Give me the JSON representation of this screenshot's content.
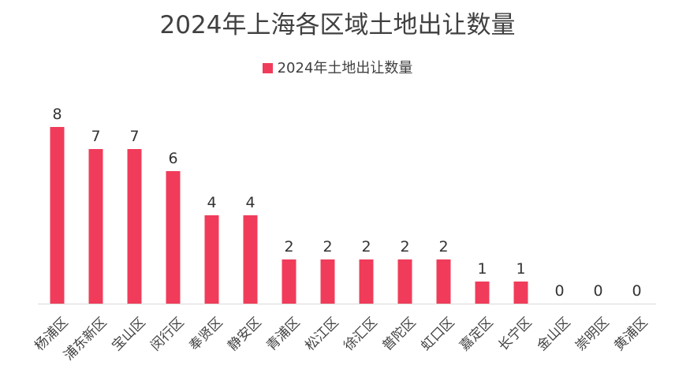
{
  "chart_data": {
    "type": "bar",
    "title": "2024年上海各区域土地出让数量",
    "categories": [
      "杨浦区",
      "浦东新区",
      "宝山区",
      "闵行区",
      "奉贤区",
      "静安区",
      "青浦区",
      "松江区",
      "徐汇区",
      "普陀区",
      "虹口区",
      "嘉定区",
      "长宁区",
      "金山区",
      "崇明区",
      "黄浦区"
    ],
    "series": [
      {
        "name": "2024年土地出让数量",
        "values": [
          8,
          7,
          7,
          6,
          4,
          4,
          2,
          2,
          2,
          2,
          2,
          1,
          1,
          0,
          0,
          0
        ],
        "color": "#f03c5a"
      }
    ],
    "ylim": [
      0,
      8.4
    ],
    "grid": false,
    "legend_position": "top-center",
    "data_labels": true
  }
}
